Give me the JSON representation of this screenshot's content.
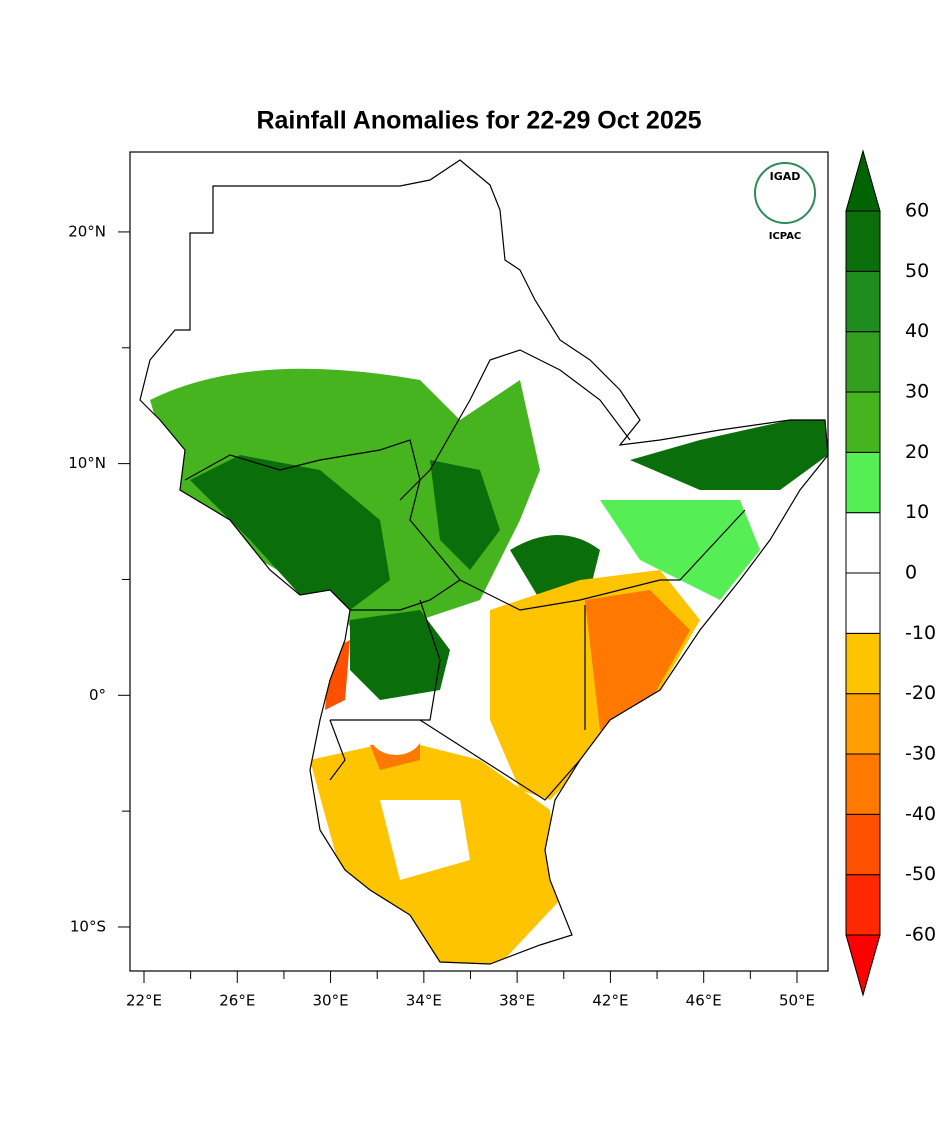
{
  "title": "Rainfall Anomalies for 22-29 Oct 2025",
  "logo": {
    "top": "IGAD",
    "bottom": "ICPAC"
  },
  "axes": {
    "xlim": [
      21.4,
      51.33
    ],
    "ylim": [
      -11.9,
      23.45
    ],
    "xticks": [
      {
        "value": 22,
        "label": "22°E"
      },
      {
        "value": 26,
        "label": "26°E"
      },
      {
        "value": 30,
        "label": "30°E"
      },
      {
        "value": 34,
        "label": "34°E"
      },
      {
        "value": 38,
        "label": "38°E"
      },
      {
        "value": 42,
        "label": "42°E"
      },
      {
        "value": 46,
        "label": "46°E"
      },
      {
        "value": 50,
        "label": "50°E"
      }
    ],
    "xminorticks": [
      24,
      28,
      32,
      36,
      40,
      44,
      48
    ],
    "yticks": [
      {
        "value": 20,
        "label": "20°N"
      },
      {
        "value": 10,
        "label": "10°N"
      },
      {
        "value": 0,
        "label": "0°"
      },
      {
        "value": -10,
        "label": "10°S"
      }
    ],
    "yminorticks": [
      15,
      5,
      -5
    ]
  },
  "colorbar": {
    "levels": [
      -60,
      -50,
      -40,
      -30,
      -20,
      -10,
      0,
      10,
      20,
      30,
      40,
      50,
      60
    ],
    "colors": [
      "#ff0000",
      "#ff2800",
      "#ff5000",
      "#ff7800",
      "#ffa000",
      "#ffc400",
      "#ffffff",
      "#ffffff",
      "#55ee55",
      "#46b41e",
      "#32a01e",
      "#1e8c1e",
      "#0a6e0a",
      "#006400"
    ]
  }
}
